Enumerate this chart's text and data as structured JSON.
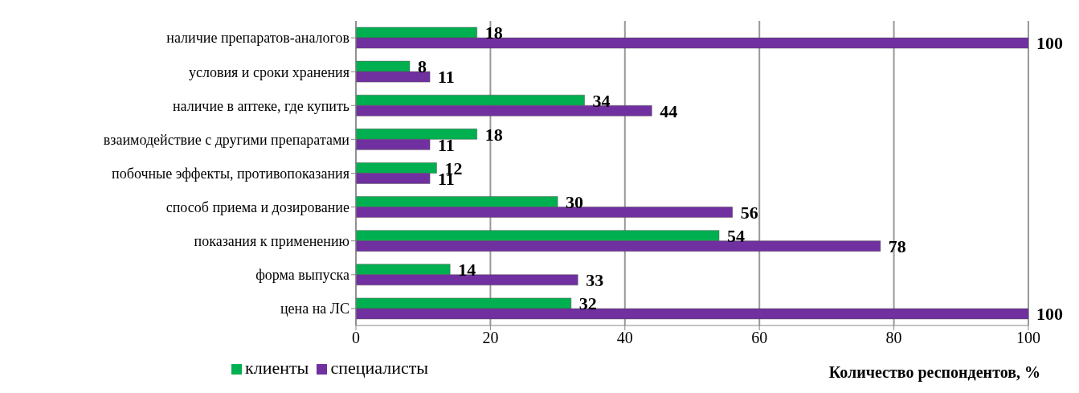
{
  "chart_data": {
    "type": "bar",
    "orientation": "horizontal",
    "xlabel": "Количество респондентов, %",
    "categories": [
      "наличие препаратов-аналогов",
      "условия и сроки хранения",
      "наличие в аптеке, где купить",
      "взаимодействие с другими препаратами",
      "побочные эффекты, противопоказания",
      "способ приема и дозирование",
      "показания к применению",
      "форма выпуска",
      "цена на ЛС"
    ],
    "series": [
      {
        "name": "клиенты",
        "color": "#00b050",
        "values": [
          18,
          8,
          34,
          18,
          12,
          30,
          54,
          14,
          32
        ]
      },
      {
        "name": "специалисты",
        "color": "#7030a0",
        "values": [
          100,
          11,
          44,
          11,
          11,
          56,
          78,
          33,
          100
        ]
      }
    ],
    "xlim": [
      0,
      100
    ],
    "xticks": [
      0,
      20,
      40,
      60,
      80,
      100
    ],
    "grid": "x",
    "legend": "bottom left",
    "data_labels": true
  }
}
